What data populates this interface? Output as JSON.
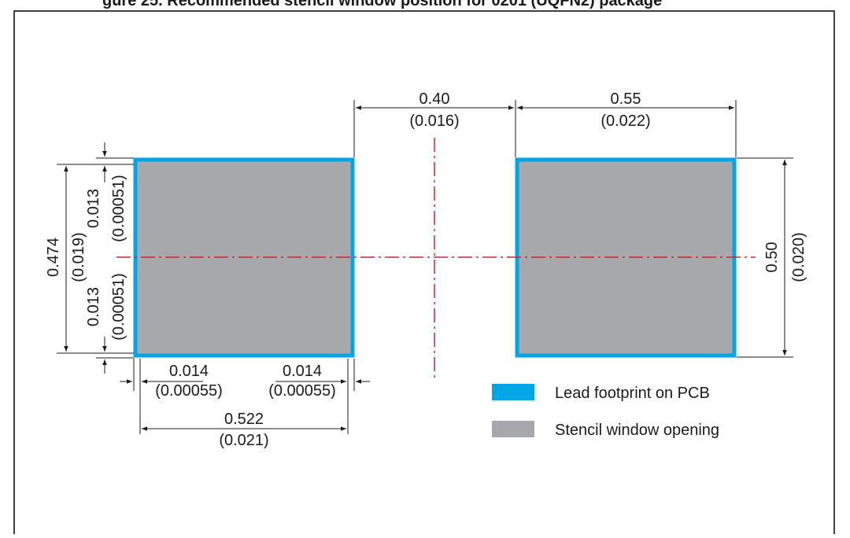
{
  "caption": "gure 25. Recommended stencil window position for 0201 (UQFN2) package",
  "colors": {
    "lead_footprint": "#00a6e6",
    "stencil_window": "#a6a8ab",
    "centerline": "#d2232a",
    "frame": "#000000",
    "dimension": "#1a1a1a"
  },
  "dimensions": {
    "pad_gap": {
      "mm": "0.40",
      "inch": "(0.016)"
    },
    "pad_width_right": {
      "mm": "0.55",
      "inch": "(0.022)"
    },
    "pad_height_right": {
      "mm": "0.50",
      "inch": "(0.020)"
    },
    "stencil_height": {
      "mm": "0.474",
      "inch": "(0.019)"
    },
    "inset_top": {
      "mm": "0.013",
      "inch": "(0.00051)"
    },
    "inset_bottom": {
      "mm": "0.013",
      "inch": "(0.00051)"
    },
    "inset_left": {
      "mm": "0.014",
      "inch": "(0.00055)"
    },
    "inset_right": {
      "mm": "0.014",
      "inch": "(0.00055)"
    },
    "stencil_width": {
      "mm": "0.522",
      "inch": "(0.021)"
    }
  },
  "legend": {
    "lead_footprint": "Lead footprint on PCB",
    "stencil_window": "Stencil window opening"
  }
}
